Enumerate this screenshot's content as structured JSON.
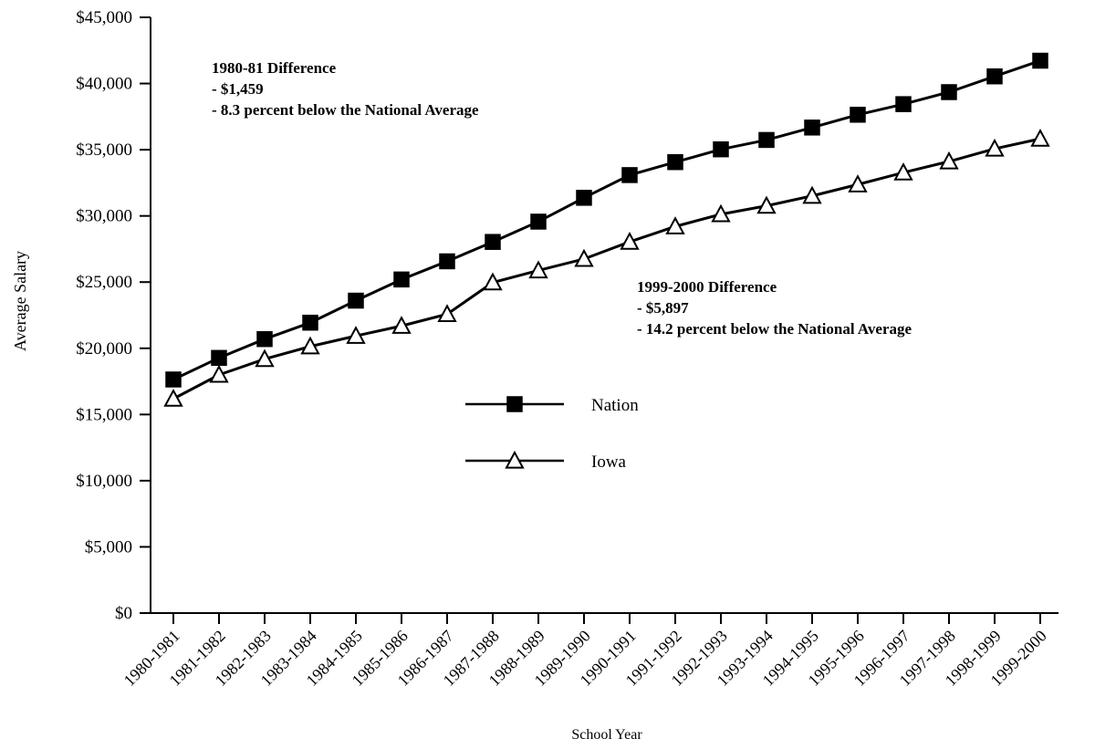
{
  "chart_data": {
    "type": "line",
    "title": "",
    "xlabel": "School Year",
    "ylabel": "Average Salary",
    "ylim": [
      0,
      45000
    ],
    "yticks": [
      "$0",
      "$5,000",
      "$10,000",
      "$15,000",
      "$20,000",
      "$25,000",
      "$30,000",
      "$35,000",
      "$40,000",
      "$45,000"
    ],
    "grid": false,
    "legend_position": "center",
    "categories": [
      "1980-1981",
      "1981-1982",
      "1982-1983",
      "1983-1984",
      "1984-1985",
      "1985-1986",
      "1986-1987",
      "1987-1988",
      "1988-1989",
      "1989-1990",
      "1990-1991",
      "1991-1992",
      "1992-1993",
      "1993-1994",
      "1994-1995",
      "1995-1996",
      "1996-1997",
      "1997-1998",
      "1998-1999",
      "1999-2000"
    ],
    "series": [
      {
        "name": "Nation",
        "marker": "filled-square",
        "values": [
          17644,
          19274,
          20695,
          21935,
          23600,
          25199,
          26569,
          28034,
          29567,
          31367,
          33084,
          34063,
          35029,
          35737,
          36675,
          37642,
          38443,
          39350,
          40540,
          41724
        ]
      },
      {
        "name": "Iowa",
        "marker": "open-triangle",
        "values": [
          16185,
          17995,
          19185,
          20140,
          20934,
          21690,
          22577,
          24970,
          25880,
          26747,
          28042,
          29202,
          30124,
          30760,
          31511,
          32372,
          33275,
          34111,
          35075,
          35827
        ]
      }
    ],
    "annotations": [
      {
        "lines": [
          "1980-81 Difference",
          "- $1,459",
          "- 8.3 percent below the National Average"
        ]
      },
      {
        "lines": [
          "1999-2000 Difference",
          "- $5,897",
          "- 14.2 percent below the National Average"
        ]
      }
    ]
  }
}
